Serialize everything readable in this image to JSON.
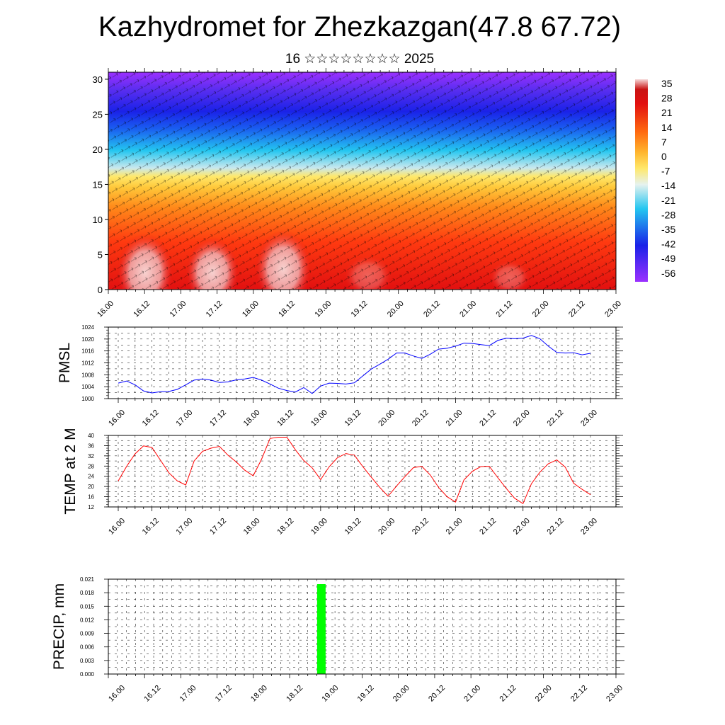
{
  "header": {
    "title": "Kazhydromet for Zhezkazgan(47.8 67.72)",
    "subtitle": "16 ☆☆☆☆☆☆☆☆ 2025"
  },
  "time_labels": [
    "16.00",
    "16.12",
    "17.00",
    "17.12",
    "18.00",
    "18.12",
    "19.00",
    "19.12",
    "20.00",
    "20.12",
    "21.00",
    "21.12",
    "22.00",
    "22.12",
    "23.00"
  ],
  "chart_data": [
    {
      "type": "heatmap",
      "title": "",
      "y_ticks": [
        0,
        5,
        10,
        15,
        20,
        25,
        30
      ],
      "ylim": [
        0,
        31
      ],
      "colorbar_labels": [
        "35",
        "28",
        "21",
        "14",
        "7",
        "0",
        "-7",
        "-14",
        "-21",
        "-28",
        "-35",
        "-42",
        "-49",
        "-56"
      ],
      "colorbar_range": [
        -60,
        39
      ],
      "colors": {
        "warm_max": "#f6d6d6",
        "hot": "#e21010",
        "orange": "#ff8a1a",
        "yellow": "#ffe86a",
        "cyan": "#24c6f0",
        "blue": "#1a22e8",
        "violet": "#9b30ff"
      }
    },
    {
      "type": "line",
      "ylabel": "PMSL",
      "ylim": [
        1000,
        1024
      ],
      "y_ticks": [
        1000,
        1004,
        1008,
        1012,
        1016,
        1020,
        1024
      ],
      "color": "#0000ff",
      "x": [
        0,
        3,
        6,
        9,
        12,
        15,
        18,
        21,
        24,
        27,
        30,
        33,
        36,
        39,
        42,
        45,
        48,
        51,
        54,
        57,
        60,
        63,
        66,
        69,
        72,
        75,
        78,
        81,
        84,
        87,
        90,
        93,
        96,
        99,
        102,
        105,
        108,
        111,
        114,
        117,
        120,
        123,
        126,
        129,
        132,
        135,
        138,
        141,
        144,
        147,
        150,
        153,
        156,
        159,
        162,
        165,
        168
      ],
      "values": [
        1005.2,
        1005.9,
        1004.6,
        1002.6,
        1001.9,
        1002.3,
        1002.4,
        1003.1,
        1004.6,
        1006.2,
        1006.6,
        1006.2,
        1005.4,
        1005.6,
        1006.3,
        1006.6,
        1007.1,
        1006.2,
        1004.9,
        1003.5,
        1002.7,
        1002.2,
        1003.7,
        1001.7,
        1004.2,
        1005.2,
        1005.1,
        1004.9,
        1005.3,
        1007.6,
        1009.9,
        1011.5,
        1013.2,
        1015.3,
        1015.3,
        1014.3,
        1013.5,
        1014.9,
        1016.6,
        1016.9,
        1017.6,
        1018.6,
        1018.5,
        1018.1,
        1017.8,
        1019.5,
        1020.3,
        1020.1,
        1020.3,
        1021.2,
        1020.1,
        1017.6,
        1015.5,
        1015.3,
        1015.4,
        1014.7,
        1015.2
      ]
    },
    {
      "type": "line",
      "ylabel": "TEMP at 2 M",
      "ylim": [
        12,
        40
      ],
      "y_ticks": [
        12,
        16,
        20,
        24,
        28,
        32,
        36,
        40
      ],
      "color": "#ff0000",
      "x": [
        0,
        3,
        6,
        9,
        12,
        15,
        18,
        21,
        24,
        27,
        30,
        33,
        36,
        39,
        42,
        45,
        48,
        51,
        54,
        57,
        60,
        63,
        66,
        69,
        72,
        75,
        78,
        81,
        84,
        87,
        90,
        93,
        96,
        99,
        102,
        105,
        108,
        111,
        114,
        117,
        120,
        123,
        126,
        129,
        132,
        135,
        138,
        141,
        144,
        147,
        150,
        153,
        156,
        159,
        162,
        165,
        168
      ],
      "values": [
        22.2,
        27.9,
        32.8,
        35.9,
        35.3,
        30.3,
        25.4,
        22.2,
        20.6,
        30.0,
        33.8,
        35.0,
        35.7,
        32.3,
        29.6,
        26.4,
        24.2,
        30.7,
        38.8,
        39.3,
        39.3,
        34.4,
        30.2,
        27.3,
        22.7,
        27.7,
        31.3,
        32.9,
        32.3,
        27.8,
        23.7,
        19.7,
        16.2,
        20.2,
        23.9,
        27.4,
        27.9,
        24.5,
        19.6,
        16.0,
        13.9,
        22.6,
        26.0,
        27.8,
        27.9,
        23.5,
        19.3,
        15.4,
        13.3,
        21.1,
        25.6,
        28.9,
        30.4,
        27.6,
        21.3,
        18.9,
        16.8
      ]
    },
    {
      "type": "bar",
      "ylabel": "PRECIP, mm",
      "ylim": [
        0,
        0.021
      ],
      "y_ticks": [
        "0.000",
        "0.003",
        "0.006",
        "0.009",
        "0.012",
        "0.015",
        "0.018",
        "0.021"
      ],
      "color": "#00ff00",
      "bars": [
        {
          "x": 70.5,
          "value": 0.021
        }
      ]
    }
  ]
}
